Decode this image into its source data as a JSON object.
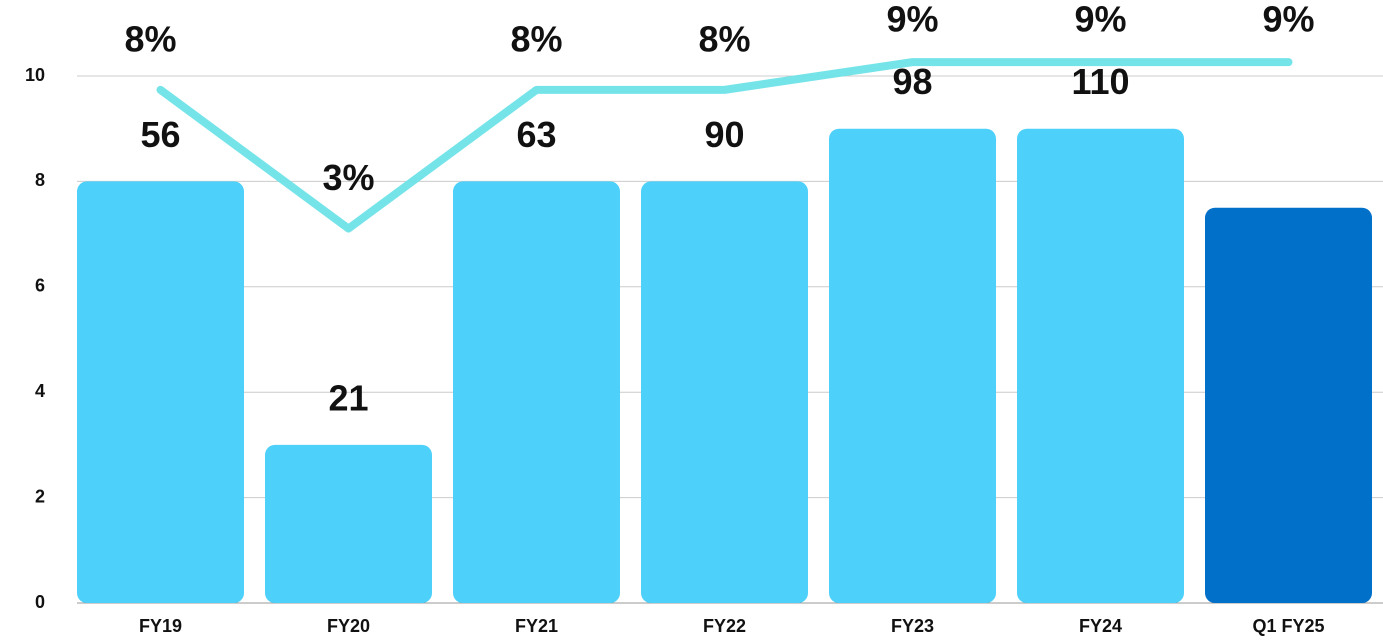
{
  "chart_data": {
    "type": "bar",
    "categories": [
      "FY19",
      "FY20",
      "FY21",
      "FY22",
      "FY23",
      "FY24",
      "Q1 FY25"
    ],
    "ylim": [
      0,
      10
    ],
    "yticks": [
      0,
      2,
      4,
      6,
      8,
      10
    ],
    "y2lim": [
      -10.5,
      8.5
    ],
    "grid": true,
    "series": [
      {
        "type": "bar",
        "colors": [
          "#4dd0fa",
          "#4dd0fa",
          "#4dd0fa",
          "#4dd0fa",
          "#4dd0fa",
          "#4dd0fa",
          "#0070c8"
        ],
        "values": [
          8,
          3,
          8,
          8,
          9,
          9,
          7.5
        ],
        "bar_labels": [
          56,
          21,
          63,
          90,
          98,
          110
        ]
      },
      {
        "type": "line",
        "axis": "y2",
        "color": "#6ee3e8",
        "values": [
          8,
          3,
          8,
          8,
          9,
          9,
          9
        ],
        "value_labels": [
          "8%",
          "3%",
          "8%",
          "8%",
          "9%",
          "9%",
          "9%"
        ]
      }
    ]
  }
}
